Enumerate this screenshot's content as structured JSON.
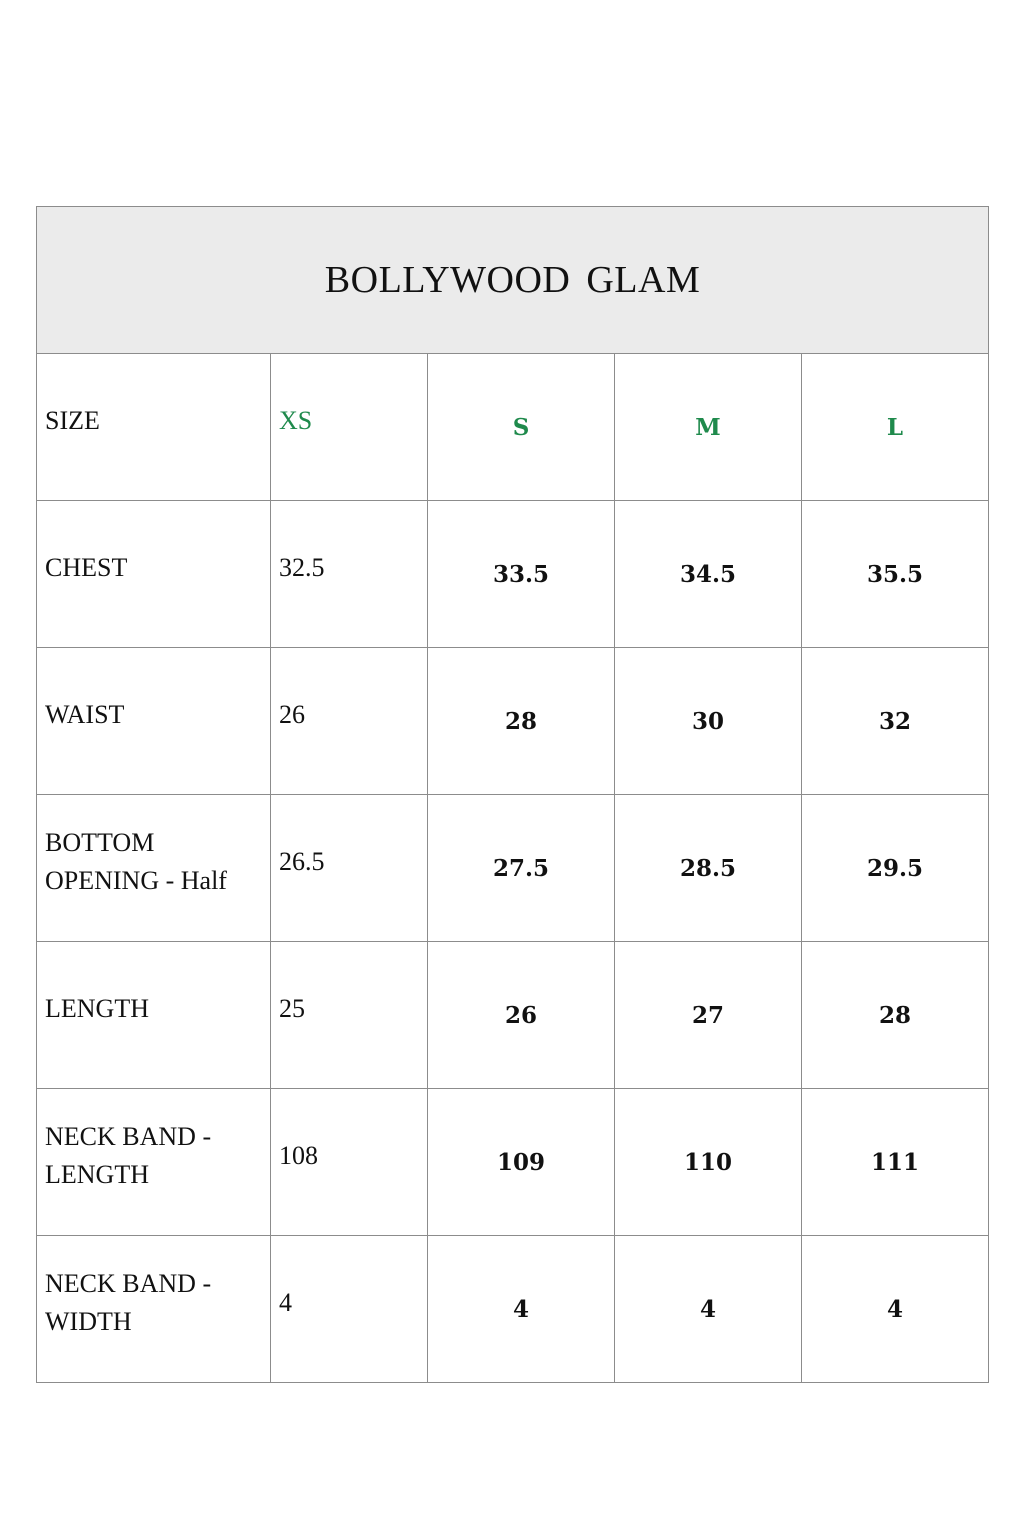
{
  "title": "BOLLYWOOD  GLAM",
  "colors": {
    "header_background": "#ebebeb",
    "size_header_text": "#1f8a4c",
    "border": "#8c8c8c",
    "text": "#111111"
  },
  "table": {
    "header_row": {
      "label": "SIZE",
      "sizes": [
        "XS",
        "S",
        "M",
        "L"
      ]
    },
    "rows": [
      {
        "label": "CHEST",
        "values": [
          "32.5",
          "33.5",
          "34.5",
          "35.5"
        ]
      },
      {
        "label": "WAIST",
        "values": [
          "26",
          "28",
          "30",
          "32"
        ]
      },
      {
        "label": "BOTTOM OPENING - Half",
        "values": [
          "26.5",
          "27.5",
          "28.5",
          "29.5"
        ]
      },
      {
        "label": "LENGTH",
        "values": [
          "25",
          "26",
          "27",
          "28"
        ]
      },
      {
        "label": "NECK BAND - LENGTH",
        "values": [
          "108",
          "109",
          "110",
          "111"
        ]
      },
      {
        "label": "NECK BAND - WIDTH",
        "values": [
          "4",
          "4",
          "4",
          "4"
        ]
      }
    ]
  }
}
